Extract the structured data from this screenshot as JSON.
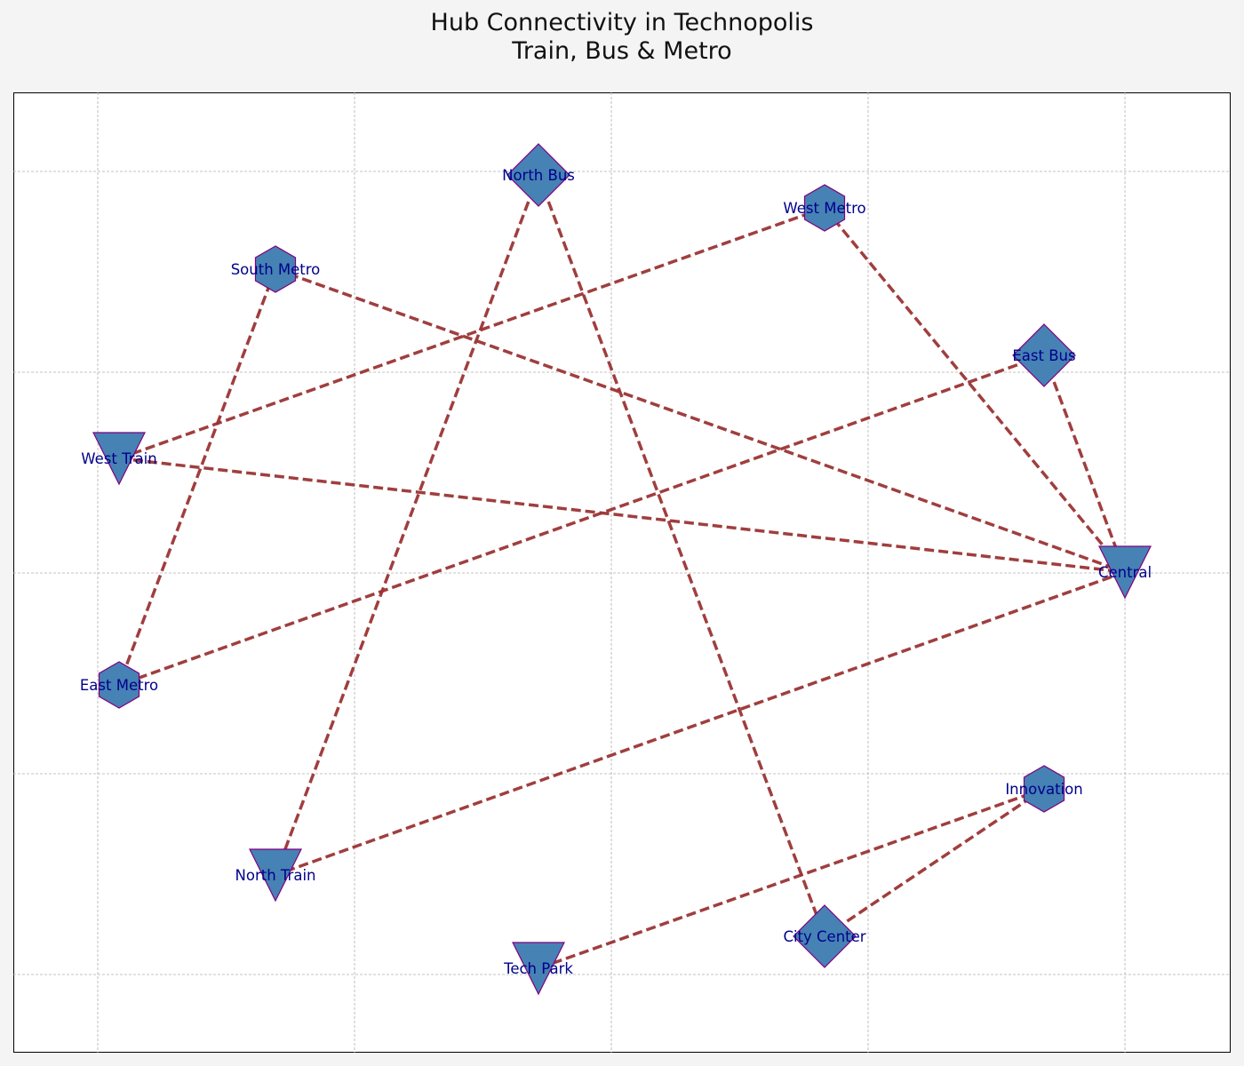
{
  "title": {
    "line1": "Hub Connectivity in Technopolis",
    "line2": "Train, Bus & Metro"
  },
  "style": {
    "background": "#f4f4f4",
    "plot_background": "#ffffff",
    "grid_color": "#b0b0b0",
    "edge_color": "#9b3434",
    "node_fill": "#4682b4",
    "node_stroke": "#800080",
    "label_color": "#00008b"
  },
  "nodes": [
    {
      "id": "north_bus",
      "label": "North Bus",
      "shape": "diamond-icon"
    },
    {
      "id": "west_metro",
      "label": "West Metro",
      "shape": "hexagon-icon"
    },
    {
      "id": "south_metro",
      "label": "South Metro",
      "shape": "hexagon-icon"
    },
    {
      "id": "east_bus",
      "label": "East Bus",
      "shape": "diamond-icon"
    },
    {
      "id": "west_train",
      "label": "West Train",
      "shape": "triangle-down-icon"
    },
    {
      "id": "central",
      "label": "Central",
      "shape": "triangle-down-icon"
    },
    {
      "id": "east_metro",
      "label": "East Metro",
      "shape": "hexagon-icon"
    },
    {
      "id": "innovation",
      "label": "Innovation",
      "shape": "hexagon-icon"
    },
    {
      "id": "north_train",
      "label": "North Train",
      "shape": "triangle-down-icon"
    },
    {
      "id": "city_center",
      "label": "City Center",
      "shape": "diamond-icon"
    },
    {
      "id": "tech_park",
      "label": "Tech Park",
      "shape": "triangle-down-icon"
    }
  ],
  "edges": [
    [
      "north_bus",
      "north_train"
    ],
    [
      "north_bus",
      "city_center"
    ],
    [
      "west_metro",
      "west_train"
    ],
    [
      "west_metro",
      "central"
    ],
    [
      "south_metro",
      "central"
    ],
    [
      "south_metro",
      "east_metro"
    ],
    [
      "east_bus",
      "east_metro"
    ],
    [
      "east_bus",
      "central"
    ],
    [
      "west_train",
      "central"
    ],
    [
      "central",
      "north_train"
    ],
    [
      "innovation",
      "tech_park"
    ],
    [
      "innovation",
      "city_center"
    ]
  ]
}
